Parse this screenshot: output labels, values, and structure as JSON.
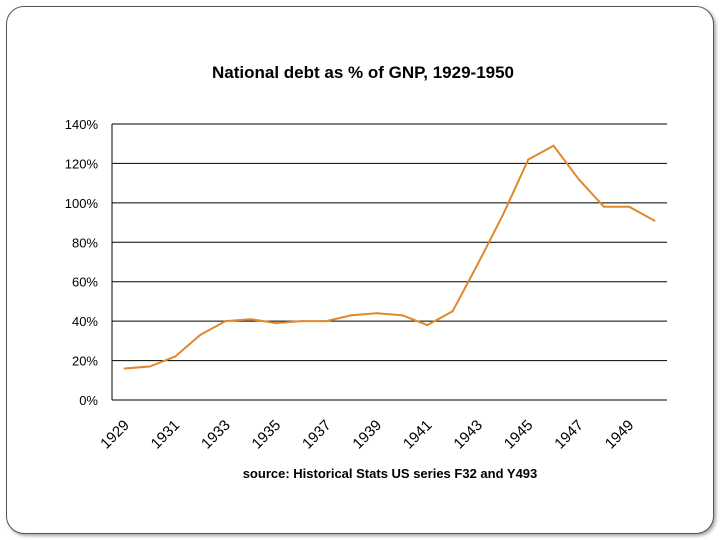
{
  "chart_data": {
    "type": "line",
    "title": "National debt as % of GNP, 1929-1950",
    "xlabel": "source: Historical Stats US  series F32 and Y493",
    "ylabel": "",
    "x": [
      1929,
      1930,
      1931,
      1932,
      1933,
      1934,
      1935,
      1936,
      1937,
      1938,
      1939,
      1940,
      1941,
      1942,
      1943,
      1944,
      1945,
      1946,
      1947,
      1948,
      1949,
      1950
    ],
    "values": [
      16,
      17,
      22,
      33,
      40,
      41,
      39,
      40,
      40,
      43,
      44,
      43,
      38,
      45,
      69,
      94,
      122,
      129,
      112,
      98,
      98,
      91
    ],
    "x_tick_labels": [
      "1929",
      "1931",
      "1933",
      "1935",
      "1937",
      "1939",
      "1941",
      "1943",
      "1945",
      "1947",
      "1949"
    ],
    "y_tick_labels": [
      "0%",
      "20%",
      "40%",
      "60%",
      "80%",
      "100%",
      "120%",
      "140%"
    ],
    "y_ticks": [
      0,
      20,
      40,
      60,
      80,
      100,
      120,
      140
    ],
    "ylim": [
      0,
      140
    ],
    "grid": true,
    "line_color": "#e0882c",
    "legend": "none"
  }
}
